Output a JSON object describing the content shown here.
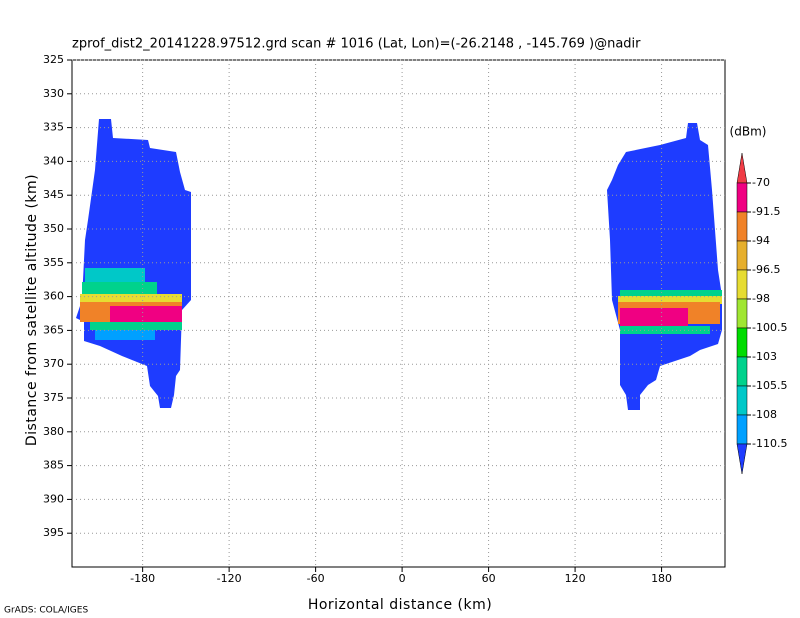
{
  "chart_data": {
    "type": "field",
    "title": "zprof_dist2_20141228.97512.grd  scan # 1016  (Lat, Lon)=(-26.2148 , -145.769 )@nadir",
    "xlabel": "Horizontal distance (km)",
    "ylabel": "Distance from satellite altitude (km)",
    "footer": "GrADS: COLA/IGES",
    "xlim": [
      -229,
      224
    ],
    "xticks": [
      -180,
      -120,
      -60,
      0,
      60,
      120,
      180
    ],
    "ylim": [
      400,
      325
    ],
    "yticks": [
      325,
      330,
      335,
      340,
      345,
      350,
      355,
      360,
      365,
      370,
      375,
      380,
      385,
      390,
      395
    ],
    "grid": true,
    "colorbar": {
      "unit": "(dBm)",
      "levels": [
        -70,
        -91.5,
        -94,
        -96.5,
        -98,
        -100.5,
        -103,
        -105.5,
        -108,
        -110.5
      ],
      "colors": [
        "#f03c46",
        "#f00082",
        "#f08228",
        "#e6af2d",
        "#e6dc32",
        "#a0e632",
        "#00dc00",
        "#00d28c",
        "#00c8c8",
        "#00a0ff",
        "#1e3cff"
      ]
    }
  }
}
